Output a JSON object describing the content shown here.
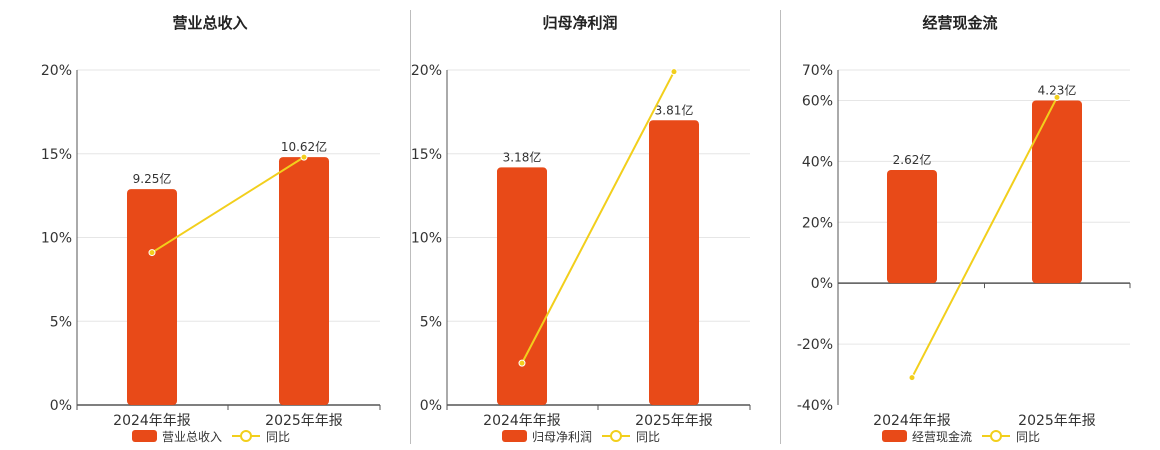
{
  "chart_data": [
    {
      "type": "bar",
      "title": "营业总收入",
      "categories": [
        "2024年年报",
        "2025年年报"
      ],
      "bar_labels": [
        "9.25亿",
        "10.62亿"
      ],
      "series": [
        {
          "name": "营业总收入",
          "type": "bar",
          "values": [
            9.25,
            10.62
          ]
        },
        {
          "name": "同比",
          "type": "line",
          "values": [
            9.1,
            14.8
          ]
        }
      ],
      "ylim": [
        0,
        20
      ],
      "yticks": [
        "20%",
        "15%",
        "10%",
        "5%",
        "0%"
      ],
      "grid": true,
      "legend": "bottom"
    },
    {
      "type": "bar",
      "title": "归母净利润",
      "categories": [
        "2024年年报",
        "2025年年报"
      ],
      "bar_labels": [
        "3.18亿",
        "3.81亿"
      ],
      "series": [
        {
          "name": "归母净利润",
          "type": "bar",
          "values": [
            3.18,
            3.81
          ]
        },
        {
          "name": "同比",
          "type": "line",
          "values": [
            2.5,
            19.9
          ]
        }
      ],
      "ylim": [
        0,
        20
      ],
      "yticks": [
        "20%",
        "15%",
        "10%",
        "5%",
        "0%"
      ],
      "grid": true,
      "legend": "bottom"
    },
    {
      "type": "bar",
      "title": "经营现金流",
      "categories": [
        "2024年年报",
        "2025年年报"
      ],
      "bar_labels": [
        "2.62亿",
        "4.23亿"
      ],
      "series": [
        {
          "name": "经营现金流",
          "type": "bar",
          "values": [
            2.62,
            4.23
          ]
        },
        {
          "name": "同比",
          "type": "line",
          "values": [
            -31,
            61
          ]
        }
      ],
      "ylim": [
        -40,
        70
      ],
      "yticks": [
        "70%",
        "60%",
        "40%",
        "20%",
        "0%",
        "-20%",
        "-40%"
      ],
      "grid": true,
      "legend": "bottom"
    }
  ],
  "colors": {
    "bar": "#E84A18",
    "line": "#F2CF1C",
    "grid": "#e6e6e6",
    "axis": "#555555",
    "text": "#333333"
  }
}
